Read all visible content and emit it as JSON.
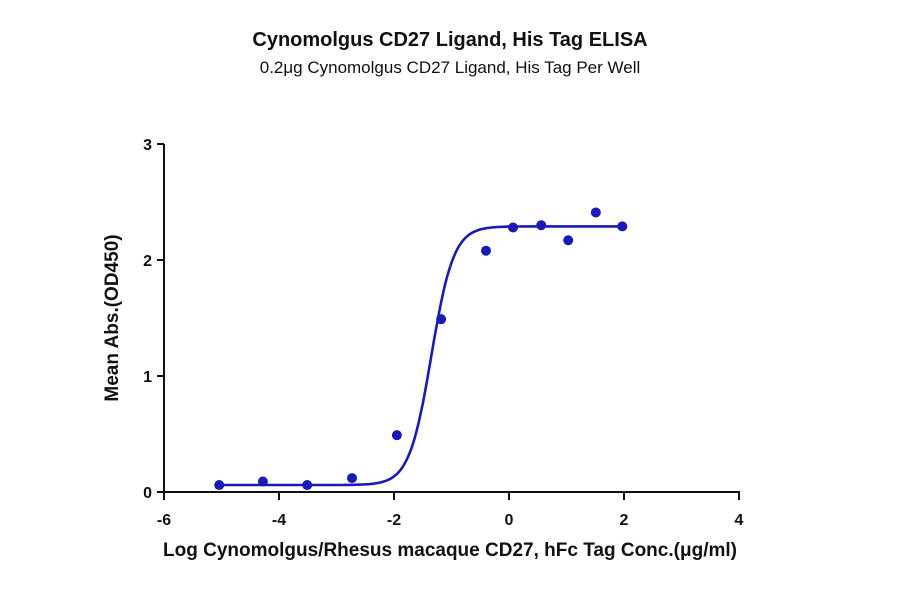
{
  "chart_data": {
    "type": "scatter",
    "title": "Cynomolgus CD27 Ligand, His Tag ELISA",
    "subtitle": "0.2μg Cynomolgus CD27 Ligand, His Tag Per Well",
    "xlabel": "Log Cynomolgus/Rhesus macaque CD27, hFc Tag Conc.(μg/ml)",
    "ylabel": "Mean Abs.(OD450)",
    "xlim": [
      -6,
      4
    ],
    "ylim": [
      0,
      3
    ],
    "xticks": [
      -6,
      -4,
      -2,
      0,
      2,
      4
    ],
    "yticks": [
      0,
      1,
      2,
      3
    ],
    "grid": false,
    "legend": null,
    "series": [
      {
        "name": "Mean Abs.(OD450)",
        "color": "#1a1ab4",
        "fit": "4PL sigmoidal curve",
        "x": [
          -5.04,
          -4.28,
          -3.51,
          -2.73,
          -1.95,
          -1.18,
          -0.4,
          0.07,
          0.56,
          1.03,
          1.51,
          1.97
        ],
        "y": [
          0.06,
          0.09,
          0.06,
          0.12,
          0.49,
          1.49,
          2.08,
          2.28,
          2.3,
          2.17,
          2.41,
          2.29
        ]
      }
    ],
    "fit_params": {
      "bottom": 0.06,
      "top": 2.29,
      "log_ec50": -1.35,
      "hill": 1.25
    }
  }
}
